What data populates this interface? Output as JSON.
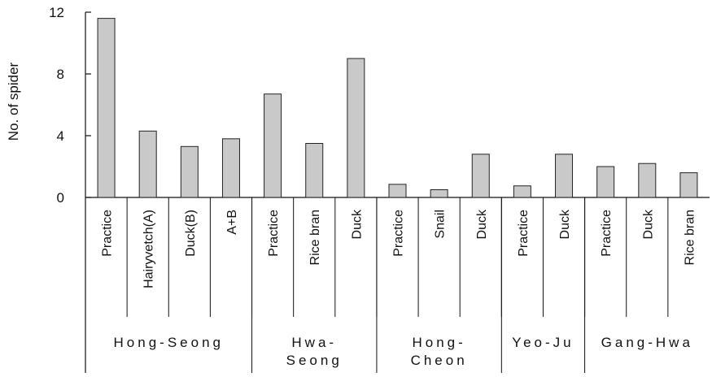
{
  "chart_data": {
    "type": "bar",
    "ylabel": "No. of spider",
    "ylim": [
      0,
      12
    ],
    "yticks": [
      "0",
      "4",
      "8",
      "12"
    ],
    "categories": [
      "Practice",
      "Hairyvetch(A)",
      "Duck(B)",
      "A+B",
      "Practice",
      "Rice bran",
      "Duck",
      "Practice",
      "Snail",
      "Duck",
      "Practice",
      "Duck",
      "Practice",
      "Duck",
      "Rice bran"
    ],
    "values": [
      11.6,
      4.3,
      3.3,
      3.8,
      6.7,
      3.5,
      9.0,
      0.85,
      0.5,
      2.8,
      0.75,
      2.8,
      2.0,
      2.2,
      1.6
    ],
    "groups": [
      {
        "name": "Hong-Seong",
        "lines": [
          "Hong-Seong"
        ],
        "count": 4
      },
      {
        "name": "Hwa-Seong",
        "lines": [
          "Hwa-",
          "Seong"
        ],
        "count": 3
      },
      {
        "name": "Hong-Cheon",
        "lines": [
          "Hong-",
          "Cheon"
        ],
        "count": 3
      },
      {
        "name": "Yeo-Ju",
        "lines": [
          "Yeo-Ju"
        ],
        "count": 2
      },
      {
        "name": "Gang-Hwa",
        "lines": [
          "Gang-Hwa"
        ],
        "count": 3
      }
    ],
    "bar_color": "#c9c9c9",
    "grid": false,
    "legend": "none"
  }
}
